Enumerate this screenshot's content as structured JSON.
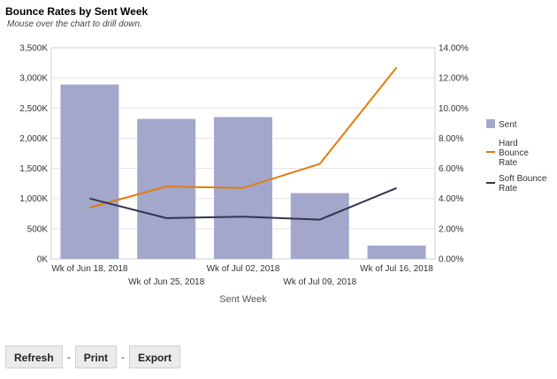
{
  "header": {
    "title": "Bounce Rates by Sent Week",
    "subtitle": "Mouse over the chart to drill down."
  },
  "toolbar": {
    "refresh_label": "Refresh",
    "print_label": "Print",
    "export_label": "Export",
    "separator": "-"
  },
  "colors": {
    "sent": "#a3a7cb",
    "hard_bounce": "#e07c0e",
    "soft_bounce": "#33334d",
    "grid": "#e3e3e3"
  },
  "chart_data": {
    "type": "bar",
    "title": "",
    "xlabel": "Sent Week",
    "ylabel": "",
    "categories": [
      "Wk of Jun 18, 2018",
      "Wk of Jun 25, 2018",
      "Wk of Jul 02, 2018",
      "Wk of Jul 09, 2018",
      "Wk of Jul 16, 2018"
    ],
    "ylim": [
      0,
      3500000
    ],
    "y2lim": [
      0,
      14
    ],
    "y_ticks": [
      "0K",
      "500K",
      "1,000K",
      "1,500K",
      "2,000K",
      "2,500K",
      "3,000K",
      "3,500K"
    ],
    "y2_ticks": [
      "0.00%",
      "2.00%",
      "4.00%",
      "6.00%",
      "8.00%",
      "10.00%",
      "12.00%",
      "14.00%"
    ],
    "grid": true,
    "legend_position": "right",
    "series": [
      {
        "name": "Sent",
        "type": "bar",
        "axis": "left",
        "values": [
          2890000,
          2320000,
          2350000,
          1090000,
          220000
        ]
      },
      {
        "name": "Hard Bounce Rate",
        "legend_lines": [
          "Hard",
          "Bounce",
          "Rate"
        ],
        "type": "line",
        "axis": "right",
        "values": [
          3.4,
          4.8,
          4.7,
          6.3,
          12.7
        ]
      },
      {
        "name": "Soft Bounce Rate",
        "legend_lines": [
          "Soft Bounce",
          "Rate"
        ],
        "type": "line",
        "axis": "right",
        "values": [
          4.0,
          2.7,
          2.8,
          2.6,
          4.7
        ]
      }
    ]
  }
}
